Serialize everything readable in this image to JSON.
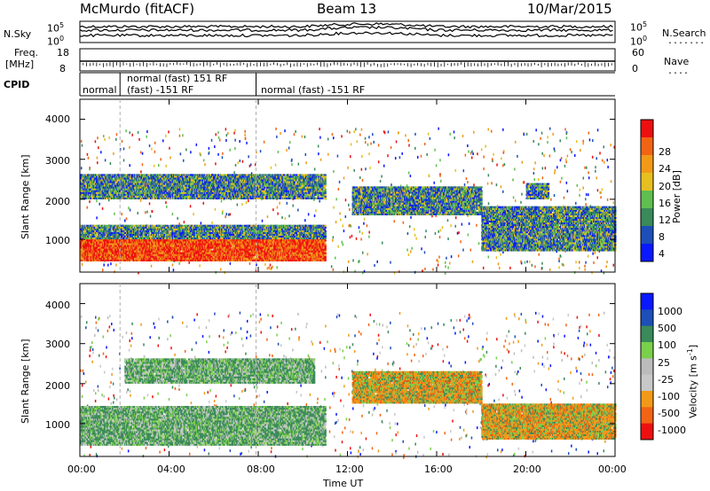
{
  "header": {
    "station": "McMurdo (fitACF)",
    "beam": "Beam 13",
    "date": "10/Mar/2015"
  },
  "strips": {
    "nsky_label": "N.Sky",
    "nsearch_label": "N.Search",
    "noise_ticks_left": [
      "10^5",
      "10^0"
    ],
    "noise_ticks_right": [
      "10^5",
      "10^0"
    ],
    "freq_label_line1": "Freq.",
    "freq_label_line2": "[MHz]",
    "freq_ticks": [
      "18",
      "8"
    ],
    "nave_ticks": [
      "60",
      "0"
    ],
    "nave_label": "Nave",
    "cpid_label": "CPID",
    "cpid_segments": [
      {
        "label": "normal",
        "start_hour": 0.0
      },
      {
        "label": "normal (fast) 151 RF",
        "start_hour": 1.8
      },
      {
        "label": "(fast) -151 RF",
        "start_hour": 1.8
      },
      {
        "label": "normal (fast) -151 RF",
        "start_hour": 7.9
      }
    ]
  },
  "colors": {
    "power": [
      "#0a18ff",
      "#1d4fb8",
      "#3a8a5a",
      "#5fbf50",
      "#e6c020",
      "#f29a18",
      "#f26414",
      "#ee1010"
    ],
    "velocity": [
      "#ee1010",
      "#f26414",
      "#f29a18",
      "#c8c8c8",
      "#bcbcbc",
      "#7ad04a",
      "#3a8a5a",
      "#1d4fb8",
      "#0a18ff"
    ],
    "grid_line": "#b0b0b0"
  },
  "chart_data": [
    {
      "type": "heatmap",
      "panel": "power",
      "title": "McMurdo (fitACF)",
      "xlabel": "Time UT",
      "ylabel": "Slant Range [km]",
      "colorbar_label": "Power [dB]",
      "colorbar_ticks": [
        "28",
        "24",
        "20",
        "16",
        "12",
        "8",
        "4"
      ],
      "x_range_hours": [
        0,
        24
      ],
      "ylim": [
        180,
        4500
      ],
      "y_ticks": [
        "4000",
        "3000",
        "2000",
        "1000"
      ],
      "x_ticks": [
        "00:00",
        "04:00",
        "08:00",
        "12:00",
        "16:00",
        "20:00",
        "00:00"
      ],
      "regions": [
        {
          "t": [
            0.0,
            11.0
          ],
          "r": [
            450,
            1000
          ],
          "level": "high"
        },
        {
          "t": [
            0.0,
            11.0
          ],
          "r": [
            1000,
            1350
          ],
          "level": "medium"
        },
        {
          "t": [
            0.0,
            11.0
          ],
          "r": [
            2000,
            2600
          ],
          "level": "medium"
        },
        {
          "t": [
            12.2,
            18.0
          ],
          "r": [
            1600,
            2300
          ],
          "level": "medium"
        },
        {
          "t": [
            18.0,
            24.0
          ],
          "r": [
            700,
            1800
          ],
          "level": "medium"
        },
        {
          "t": [
            20.0,
            21.0
          ],
          "r": [
            2000,
            2400
          ],
          "level": "medium"
        }
      ]
    },
    {
      "type": "heatmap",
      "panel": "velocity",
      "xlabel": "Time UT",
      "ylabel": "Slant Range [km]",
      "colorbar_label": "Velocity [m s^-1]",
      "colorbar_ticks": [
        "1000",
        "500",
        "100",
        "25",
        "-25",
        "-100",
        "-500",
        "-1000"
      ],
      "x_range_hours": [
        0,
        24
      ],
      "ylim": [
        180,
        4500
      ],
      "y_ticks": [
        "4000",
        "3000",
        "2000",
        "1000"
      ],
      "x_ticks": [
        "00:00",
        "04:00",
        "08:00",
        "12:00",
        "16:00",
        "20:00",
        "00:00"
      ],
      "regions": [
        {
          "t": [
            0.0,
            11.0
          ],
          "r": [
            450,
            1400
          ],
          "level": "positive"
        },
        {
          "t": [
            12.2,
            18.0
          ],
          "r": [
            1500,
            2300
          ],
          "level": "negative"
        },
        {
          "t": [
            18.0,
            24.0
          ],
          "r": [
            600,
            1500
          ],
          "level": "negative"
        },
        {
          "t": [
            2.0,
            10.5
          ],
          "r": [
            2000,
            2600
          ],
          "level": "positive"
        }
      ]
    }
  ]
}
